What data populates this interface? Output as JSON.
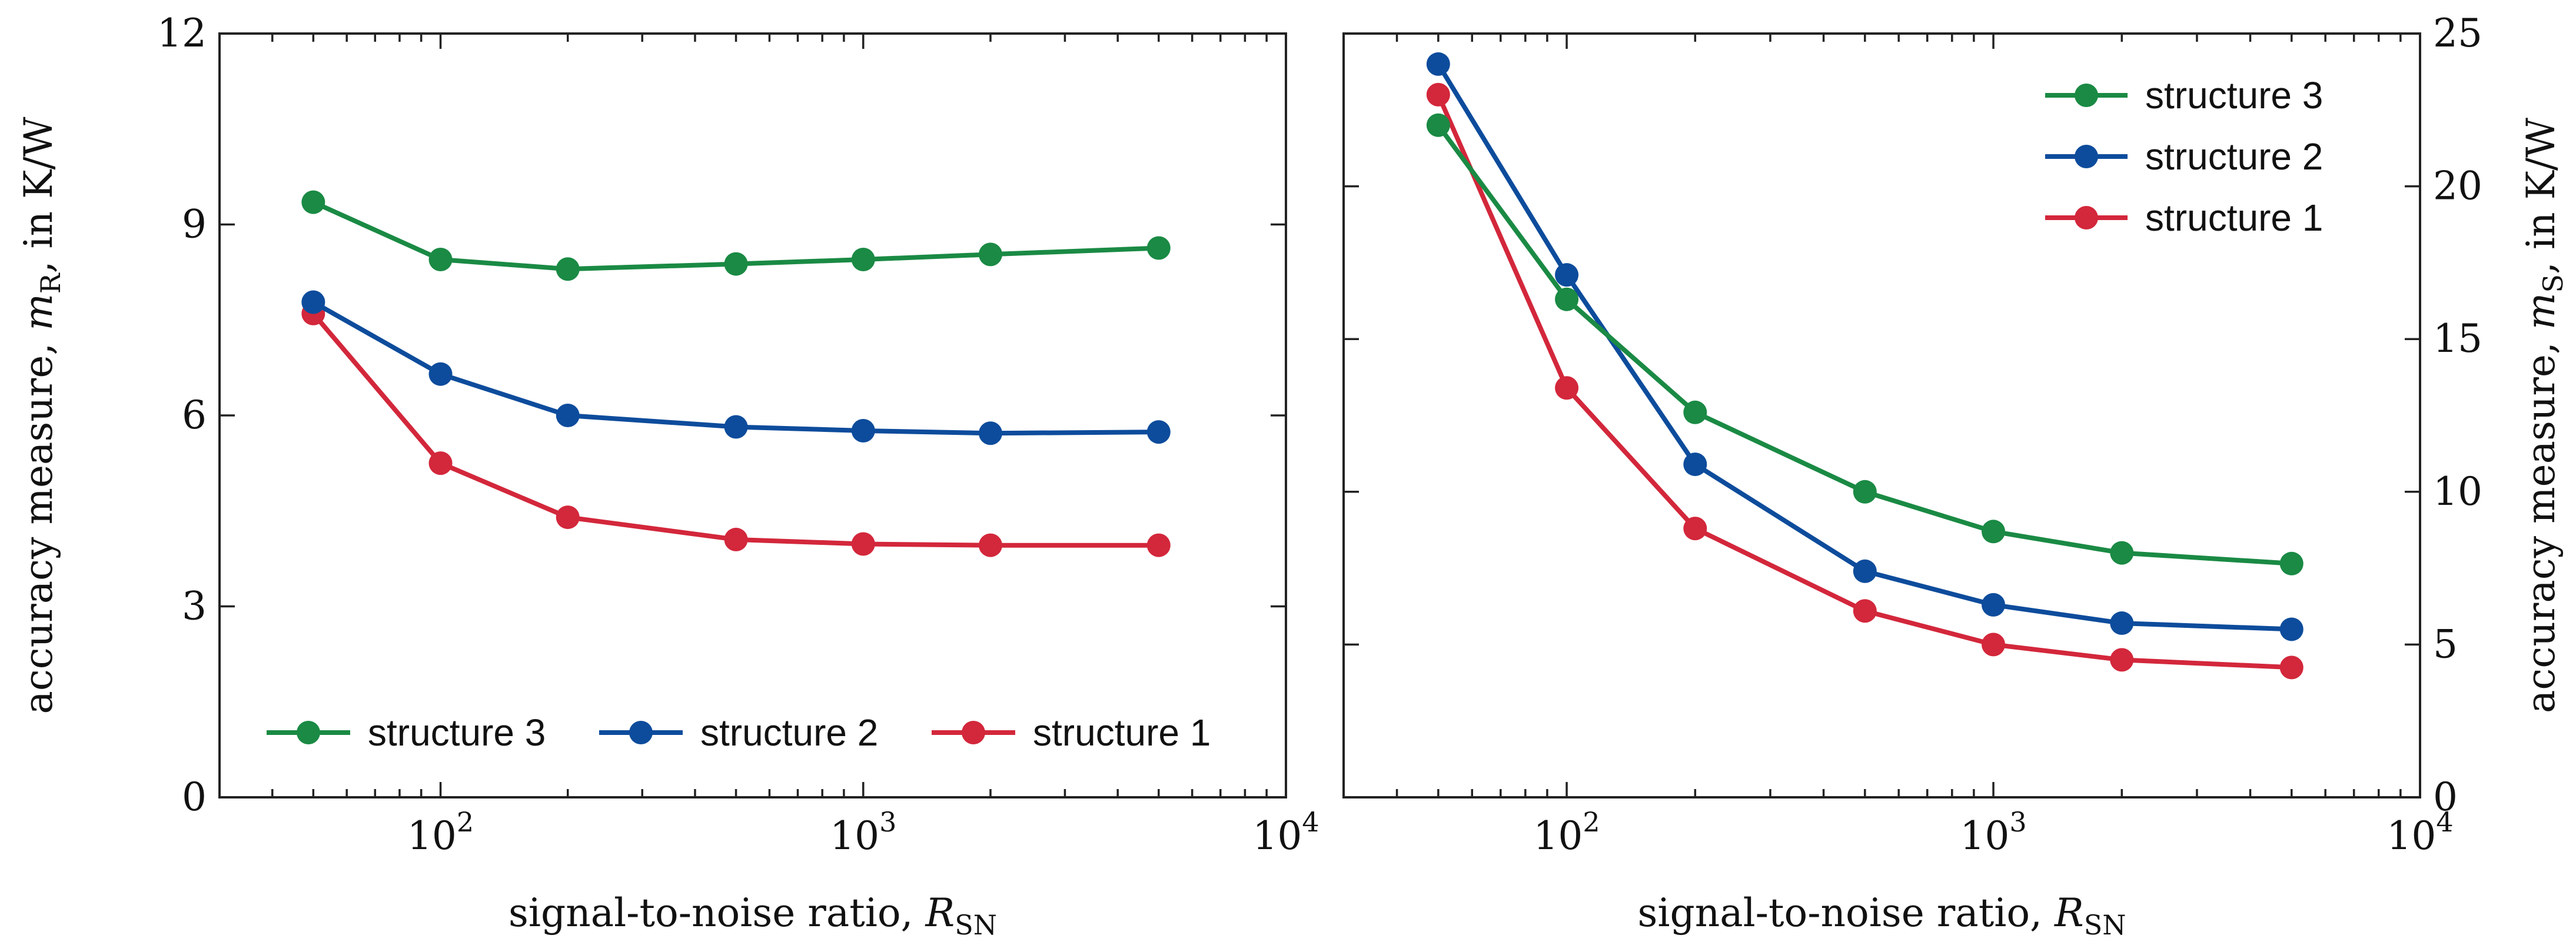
{
  "chart_data": [
    {
      "type": "line",
      "xscale": "log",
      "xlim": [
        30,
        10000
      ],
      "ylim": [
        0,
        12
      ],
      "xticks": [
        100,
        1000,
        10000
      ],
      "xtick_labels": [
        {
          "base": "10",
          "exp": "2"
        },
        {
          "base": "10",
          "exp": "3"
        },
        {
          "base": "10",
          "exp": "4"
        }
      ],
      "yticks": [
        0,
        3,
        6,
        9,
        12
      ],
      "ytick_labels": [
        "0",
        "3",
        "6",
        "9",
        "12"
      ],
      "xlabel": {
        "text": "signal-to-noise ratio, ",
        "var": "R",
        "sub": "SN"
      },
      "ylabel": {
        "text": "accuracy measure, ",
        "var": "m",
        "sub": "R",
        "unit": ", in K/W"
      },
      "legend_position": "bottom",
      "x": [
        50,
        100,
        200,
        500,
        1000,
        2000,
        5000
      ],
      "series": [
        {
          "name": "structure 3",
          "color": "#1a8a44",
          "values": [
            9.35,
            8.45,
            8.3,
            8.38,
            8.45,
            8.53,
            8.63
          ]
        },
        {
          "name": "structure 2",
          "color": "#0d4c9c",
          "values": [
            7.78,
            6.65,
            6.0,
            5.82,
            5.76,
            5.72,
            5.74
          ]
        },
        {
          "name": "structure 1",
          "color": "#d3273b",
          "values": [
            7.6,
            5.25,
            4.4,
            4.05,
            3.98,
            3.96,
            3.96
          ]
        }
      ]
    },
    {
      "type": "line",
      "xscale": "log",
      "xlim": [
        30,
        10000
      ],
      "ylim": [
        0,
        25
      ],
      "xticks": [
        100,
        1000,
        10000
      ],
      "xtick_labels": [
        {
          "base": "10",
          "exp": "2"
        },
        {
          "base": "10",
          "exp": "3"
        },
        {
          "base": "10",
          "exp": "4"
        }
      ],
      "yticks": [
        0,
        5,
        10,
        15,
        20,
        25
      ],
      "ytick_labels": [
        "0",
        "5",
        "10",
        "15",
        "20",
        "25"
      ],
      "xlabel": {
        "text": "signal-to-noise ratio, ",
        "var": "R",
        "sub": "SN"
      },
      "ylabel": {
        "text": "accuracy measure, ",
        "var": "m",
        "sub": "S",
        "unit": ", in K/W"
      },
      "legend_position": "top-right",
      "x": [
        50,
        100,
        200,
        500,
        1000,
        2000,
        5000
      ],
      "series": [
        {
          "name": "structure 3",
          "color": "#1a8a44",
          "values": [
            22.0,
            16.3,
            12.6,
            10.0,
            8.7,
            8.0,
            7.65
          ]
        },
        {
          "name": "structure 2",
          "color": "#0d4c9c",
          "values": [
            24.0,
            17.1,
            10.9,
            7.4,
            6.3,
            5.7,
            5.5
          ]
        },
        {
          "name": "structure 1",
          "color": "#d3273b",
          "values": [
            23.0,
            13.4,
            8.8,
            6.1,
            5.0,
            4.5,
            4.25
          ]
        }
      ]
    }
  ]
}
